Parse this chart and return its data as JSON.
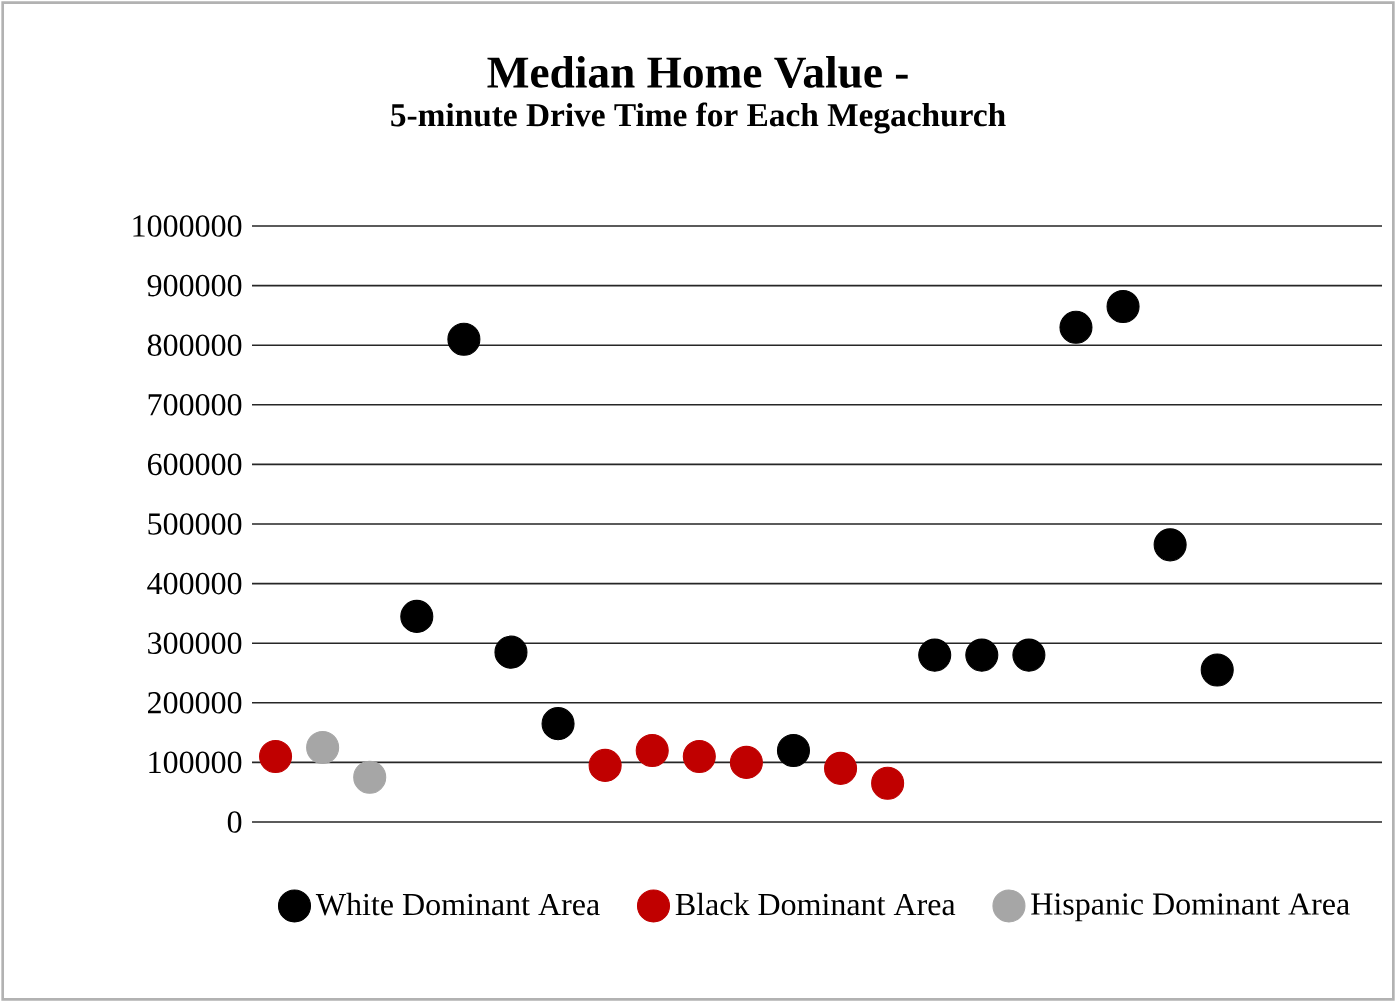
{
  "chart_data": {
    "type": "scatter",
    "title": "Median Home Value -",
    "subtitle": "5-minute Drive Time for Each Megachurch",
    "categories": [
      null,
      null,
      null,
      null,
      null,
      null,
      null,
      null,
      null,
      null,
      null,
      null,
      null,
      null,
      null,
      null,
      null,
      null,
      null,
      null,
      null,
      null,
      null,
      null
    ],
    "series": [
      {
        "name": "White Dominant Area",
        "color": "#000000",
        "values": [
          null,
          null,
          null,
          345000,
          810000,
          285000,
          165000,
          null,
          null,
          null,
          null,
          120000,
          null,
          null,
          280000,
          280000,
          280000,
          830000,
          865000,
          465000,
          255000,
          null,
          null,
          null
        ]
      },
      {
        "name": "Black Dominant Area",
        "color": "#c00000",
        "values": [
          110000,
          null,
          null,
          null,
          null,
          null,
          null,
          95000,
          120000,
          110000,
          100000,
          null,
          90000,
          65000,
          null,
          null,
          null,
          null,
          null,
          null,
          null,
          null,
          null,
          null
        ]
      },
      {
        "name": "Hispanic Dominant Area",
        "color": "#a6a6a6",
        "values": [
          null,
          125000,
          75000,
          null,
          null,
          null,
          null,
          null,
          null,
          null,
          null,
          null,
          null,
          null,
          null,
          null,
          null,
          null,
          null,
          null,
          null,
          null,
          null,
          null
        ]
      }
    ],
    "ylim": [
      0,
      1000000
    ],
    "yticks": [
      0,
      100000,
      200000,
      300000,
      400000,
      500000,
      600000,
      700000,
      800000,
      900000,
      1000000
    ],
    "grid": "y",
    "legend": "bottom"
  }
}
